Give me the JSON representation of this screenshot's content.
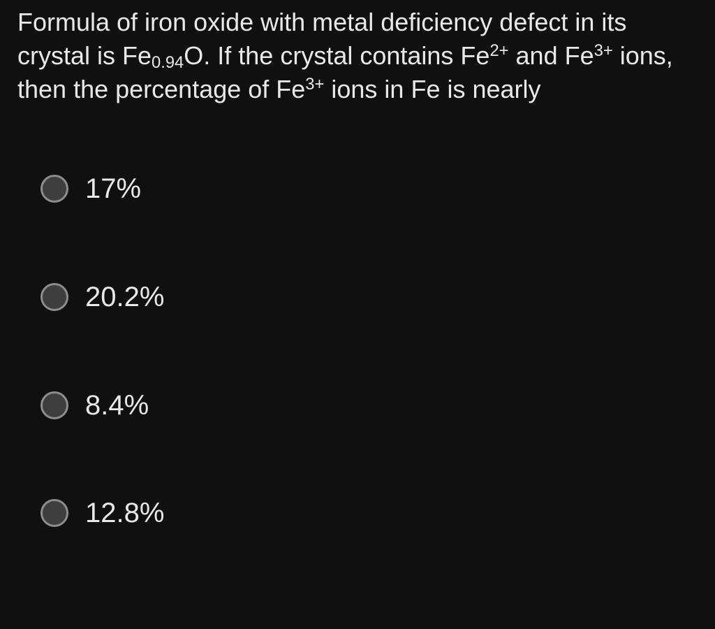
{
  "colors": {
    "background": "#101010",
    "text": "#e9e9e9",
    "radio_border": "#8d8d8d",
    "radio_fill": "#3e3e3e"
  },
  "question": {
    "lines": [
      {
        "segments": [
          {
            "t": "Formula of iron oxide with metal deficiency defect in its"
          }
        ]
      },
      {
        "segments": [
          {
            "t": "crystal is Fe"
          },
          {
            "sub": "0.94"
          },
          {
            "t": "O. If the crystal contains Fe"
          },
          {
            "sup": "2+"
          },
          {
            "t": " and Fe"
          },
          {
            "sup": "3+"
          },
          {
            "t": " ions,"
          }
        ]
      },
      {
        "segments": [
          {
            "t": "then the percentage of Fe"
          },
          {
            "sup": "3+"
          },
          {
            "t": " ions in Fe is nearly"
          }
        ]
      }
    ]
  },
  "options": [
    {
      "label": "17%",
      "selected": false
    },
    {
      "label": "20.2%",
      "selected": false
    },
    {
      "label": "8.4%",
      "selected": false
    },
    {
      "label": "12.8%",
      "selected": false
    }
  ]
}
